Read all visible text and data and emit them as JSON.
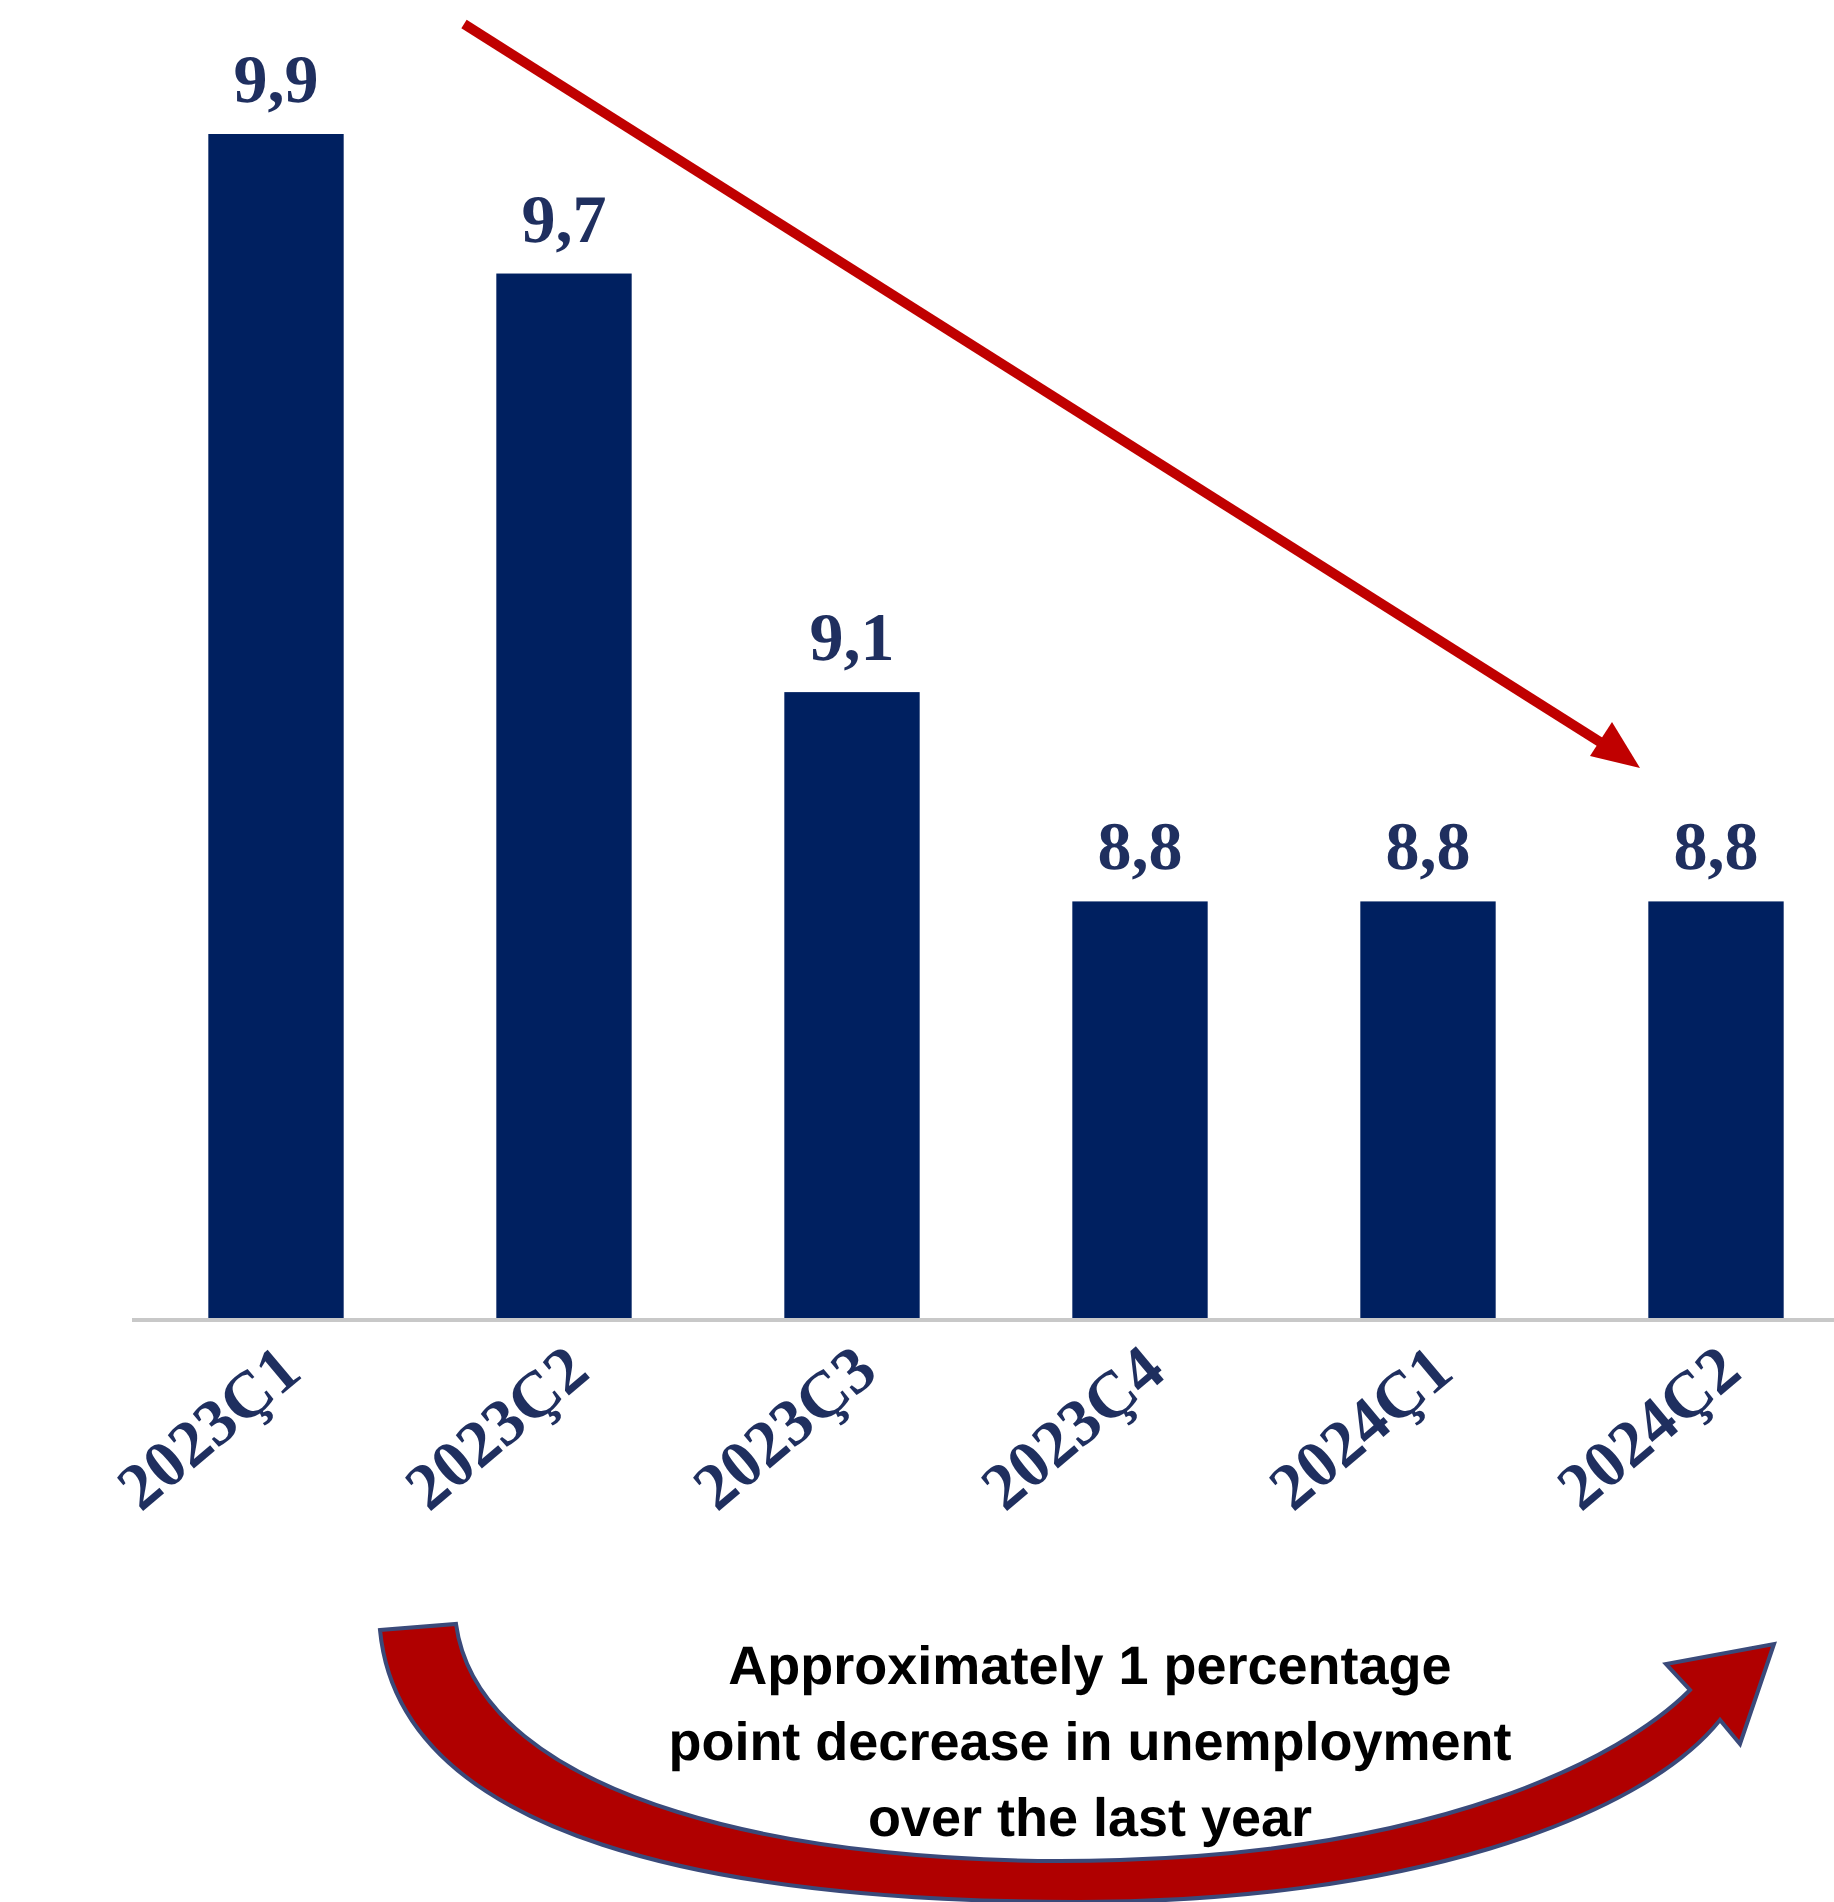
{
  "chart_data": {
    "type": "bar",
    "categories": [
      "2023Ç1",
      "2023Ç2",
      "2023Ç3",
      "2023Ç4",
      "2024Ç1",
      "2024Ç2"
    ],
    "values": [
      9.9,
      9.7,
      9.1,
      8.8,
      8.8,
      8.8
    ],
    "value_labels": [
      "9,9",
      "9,7",
      "9,1",
      "8,8",
      "8,8",
      "8,8"
    ],
    "color": "#002060",
    "ylim": [
      8.2,
      9.9
    ],
    "tick_labels": "x",
    "annotations": [
      "Approximately 1 percentage point decrease in unemployment over the last year"
    ]
  }
}
